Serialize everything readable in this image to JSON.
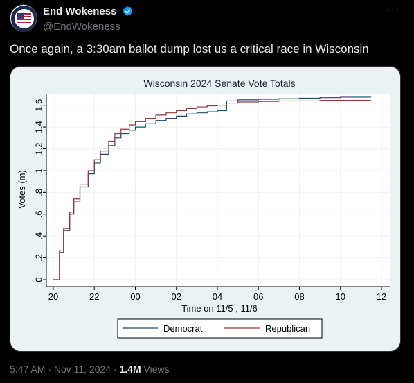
{
  "author": {
    "display_name": "End Wokeness",
    "handle": "@EndWokeness",
    "avatar_icon": "flag-badge-avatar",
    "verified_icon": "verified-badge-icon",
    "more_label": "···"
  },
  "tweet": {
    "text": "Once again, a 3:30am ballot dump lost us a critical race in Wisconsin"
  },
  "meta": {
    "time": "5:47 AM",
    "separator1": " · ",
    "date": "Nov 11, 2024",
    "separator2": " · ",
    "views_count": "1.4M",
    "views_label": " Views"
  },
  "colors": {
    "democrat": "#1a476f",
    "republican": "#90353b",
    "plot_bg": "#ffffff",
    "outer_bg": "#eaf2f3",
    "verified": "#1d9bf0"
  },
  "chart_data": {
    "type": "line",
    "title": "Wisconsin 2024 Senate Vote Totals",
    "xlabel": "Time on 11/5 , 11/6",
    "ylabel": "Votes (m)",
    "x_ticks": [
      "20",
      "22",
      "00",
      "02",
      "04",
      "06",
      "08",
      "10",
      "12"
    ],
    "y_ticks": [
      "0",
      ".2",
      ".4",
      ".6",
      ".8",
      "1",
      "1.2",
      "1.4",
      "1.6"
    ],
    "xlim": [
      20,
      36
    ],
    "ylim": [
      0,
      1.7
    ],
    "legend_position": "bottom",
    "series": [
      {
        "name": "Democrat",
        "color": "#1a476f",
        "x": [
          20,
          20.3,
          20.5,
          20.8,
          21,
          21.3,
          21.7,
          22,
          22.3,
          22.7,
          23,
          23.3,
          23.7,
          24,
          24.5,
          25,
          25.5,
          26,
          26.5,
          27,
          27.5,
          28,
          28.4,
          28.45,
          29,
          30,
          31,
          32,
          33,
          34,
          35,
          35.5
        ],
        "y": [
          0,
          0.25,
          0.45,
          0.6,
          0.72,
          0.85,
          0.97,
          1.07,
          1.15,
          1.23,
          1.3,
          1.34,
          1.37,
          1.4,
          1.43,
          1.46,
          1.48,
          1.5,
          1.52,
          1.53,
          1.54,
          1.55,
          1.55,
          1.64,
          1.65,
          1.655,
          1.66,
          1.665,
          1.67,
          1.675,
          1.675,
          1.675
        ]
      },
      {
        "name": "Republican",
        "color": "#90353b",
        "x": [
          20,
          20.3,
          20.5,
          20.8,
          21,
          21.3,
          21.7,
          22,
          22.3,
          22.7,
          23,
          23.3,
          23.7,
          24,
          24.5,
          25,
          25.5,
          26,
          26.5,
          27,
          27.5,
          28,
          28.4,
          28.45,
          29,
          30,
          31,
          32,
          33,
          34,
          35,
          35.5
        ],
        "y": [
          0,
          0.27,
          0.47,
          0.62,
          0.74,
          0.87,
          1.0,
          1.1,
          1.18,
          1.27,
          1.34,
          1.38,
          1.42,
          1.45,
          1.48,
          1.51,
          1.53,
          1.55,
          1.57,
          1.585,
          1.595,
          1.6,
          1.6,
          1.62,
          1.63,
          1.635,
          1.64,
          1.64,
          1.645,
          1.645,
          1.645,
          1.645
        ]
      }
    ]
  }
}
